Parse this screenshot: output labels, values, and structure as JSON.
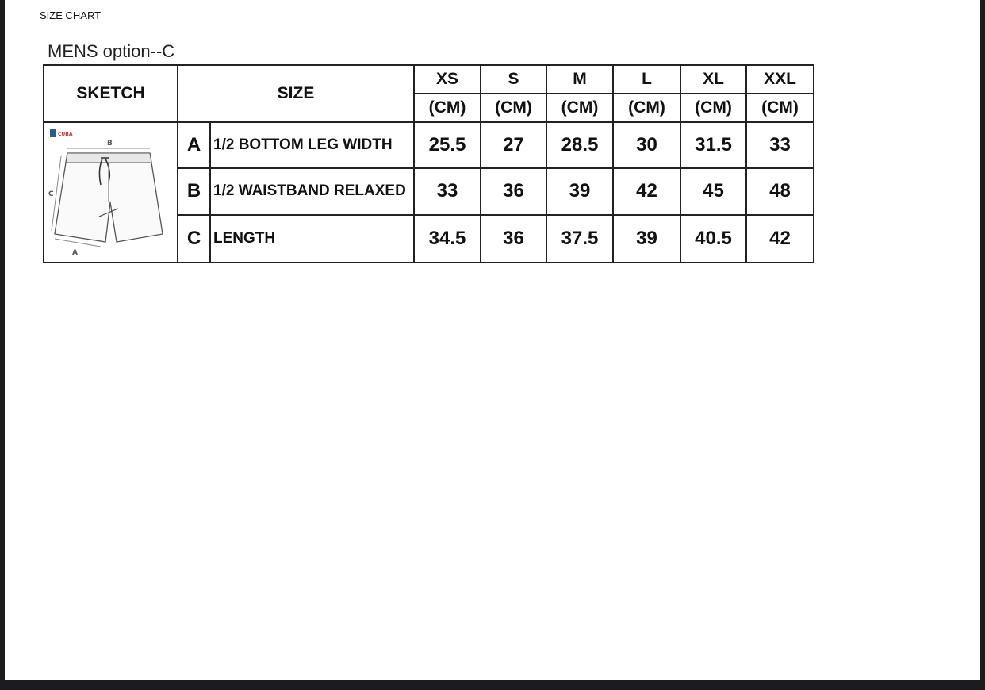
{
  "document": {
    "title": "SIZE CHART"
  },
  "table": {
    "title": "MENS option--C",
    "sketch_header": "SKETCH",
    "size_header": "SIZE",
    "sizes": [
      "XS",
      "S",
      "M",
      "L",
      "XL",
      "XXL"
    ],
    "unit": "(CM)",
    "sketch": {
      "labels": [
        "A",
        "B",
        "C"
      ],
      "logo_text": "CUBA"
    },
    "rows": [
      {
        "letter": "A",
        "label": "1/2 BOTTOM LEG WIDTH",
        "values": [
          "25.5",
          "27",
          "28.5",
          "30",
          "31.5",
          "33"
        ]
      },
      {
        "letter": "B",
        "label": "1/2 WAISTBAND RELAXED",
        "values": [
          "33",
          "36",
          "39",
          "42",
          "45",
          "48"
        ]
      },
      {
        "letter": "C",
        "label": "LENGTH",
        "values": [
          "34.5",
          "36",
          "37.5",
          "39",
          "40.5",
          "42"
        ]
      }
    ]
  },
  "colors": {
    "frame": "#1c1c1e",
    "page": "#ffffff",
    "border": "#222222"
  }
}
